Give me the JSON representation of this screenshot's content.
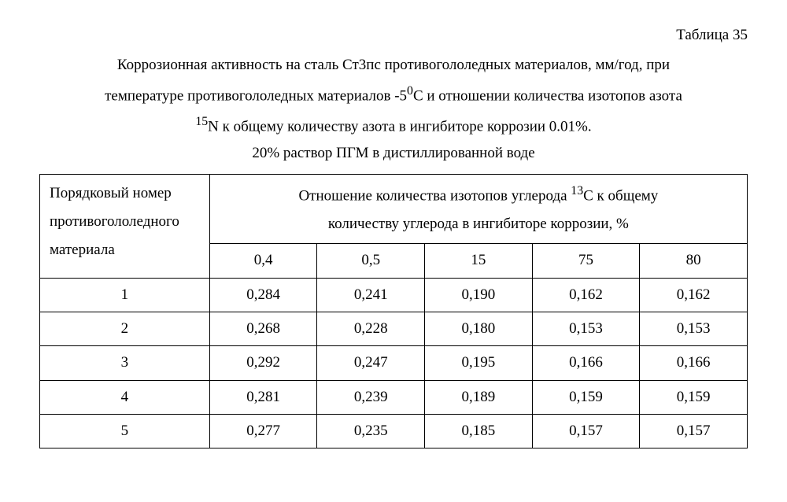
{
  "table_number": "Таблица 35",
  "caption_line1": "Коррозионная активность на сталь Ст3пс противогололедных материалов, мм/год, при",
  "caption_line2_a": "температуре противогололедных материалов -5",
  "caption_line2_sup": "0",
  "caption_line2_b": "С и отношении количества изотопов азота",
  "caption_line3_sup": "15",
  "caption_line3_a": "N  к общему количеству азота в ингибиторе коррозии 0.01%.",
  "caption_line4": "20% раствор ПГМ в дистиллированной воде",
  "header_rowhead_l1": "Порядковый номер",
  "header_rowhead_l2": "противогололедного",
  "header_rowhead_l3": "материала",
  "header_group_a": "Отношение количества изотопов углерода ",
  "header_group_sup": "13",
  "header_group_b": "С к общему",
  "header_group_l2": "количеству углерода в ингибиторе коррозии, %",
  "cols": {
    "c1": "0,4",
    "c2": "0,5",
    "c3": "15",
    "c4": "75",
    "c5": "80"
  },
  "rows": [
    {
      "n": "1",
      "v": [
        "0,284",
        "0,241",
        "0,190",
        "0,162",
        "0,162"
      ]
    },
    {
      "n": "2",
      "v": [
        "0,268",
        "0,228",
        "0,180",
        "0,153",
        "0,153"
      ]
    },
    {
      "n": "3",
      "v": [
        "0,292",
        "0,247",
        "0,195",
        "0,166",
        "0,166"
      ]
    },
    {
      "n": "4",
      "v": [
        "0,281",
        "0,239",
        "0,189",
        "0,159",
        "0,159"
      ]
    },
    {
      "n": "5",
      "v": [
        "0,277",
        "0,235",
        "0,185",
        "0,157",
        "0,157"
      ]
    }
  ],
  "style": {
    "font_family": "Times New Roman",
    "font_size_pt": 14,
    "border_color": "#000000",
    "background_color": "#ffffff",
    "text_color": "#000000"
  }
}
